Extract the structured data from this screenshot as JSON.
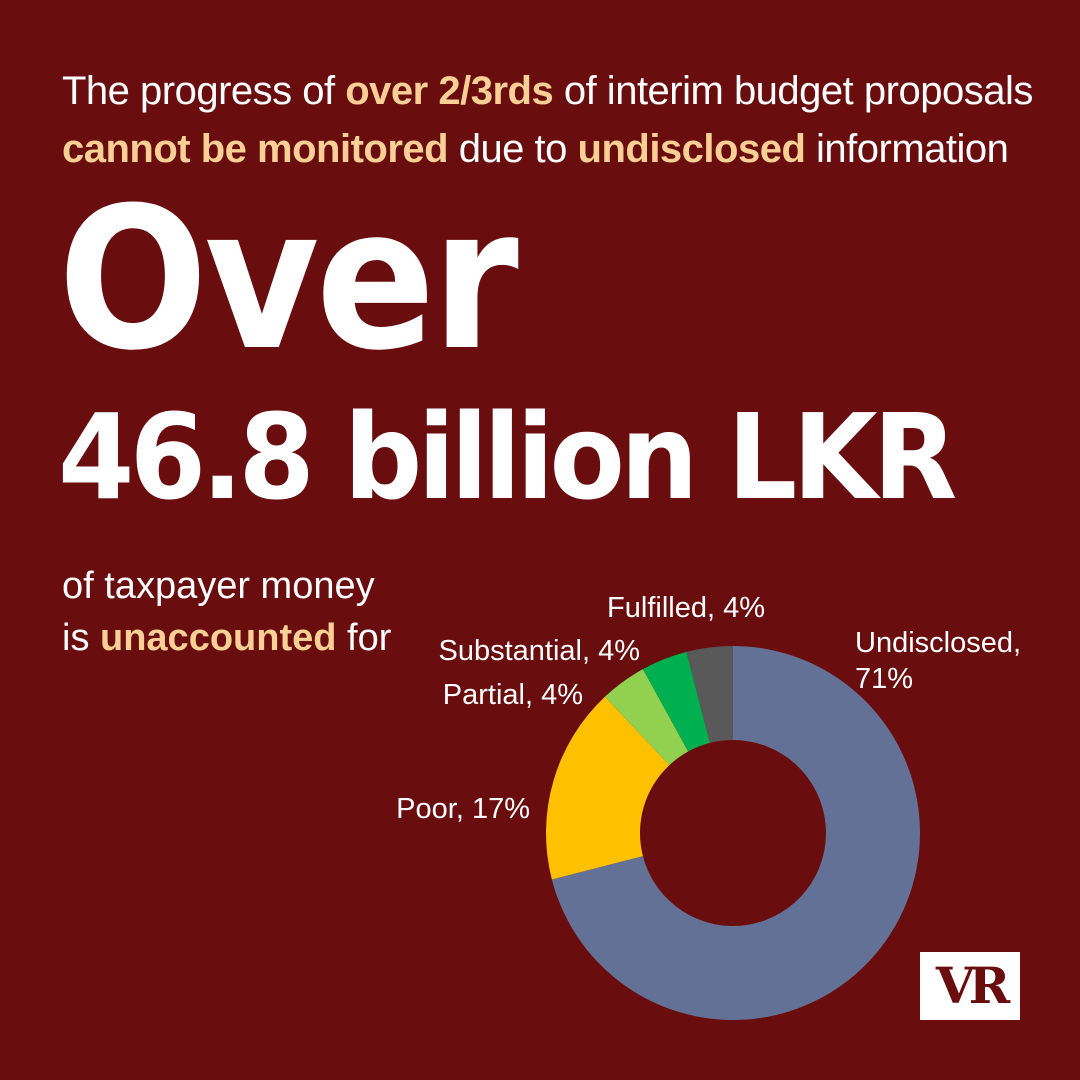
{
  "headline": {
    "line1_a": "The progress of ",
    "line1_b": "over 2/3rds",
    "line1_c": " of interim budget proposals",
    "line2_a": "cannot be monitored",
    "line2_b": " due to ",
    "line2_c": "undisclosed",
    "line2_d": " information"
  },
  "big_over": "Over",
  "big_amount": "46.8 billion LKR",
  "subtext": {
    "line1": "of taxpayer money",
    "line2_a": "is ",
    "line2_b": "unaccounted",
    "line2_c": " for"
  },
  "logo_text": "VR",
  "colors": {
    "background": "#6a0d0f",
    "highlight": "#f9cf95"
  },
  "chart_data": {
    "type": "pie",
    "donut": true,
    "title": "",
    "slices": [
      {
        "name": "Undisclosed",
        "value": 71,
        "label_lines": [
          "Undisclosed,",
          "71%"
        ],
        "color": "#647196"
      },
      {
        "name": "Poor",
        "value": 17,
        "label_lines": [
          "Poor, 17%"
        ],
        "color": "#ffc000"
      },
      {
        "name": "Partial",
        "value": 4,
        "label_lines": [
          "Partial, 4%"
        ],
        "color": "#92d050"
      },
      {
        "name": "Substantial",
        "value": 4,
        "label_lines": [
          "Substantial, 4%"
        ],
        "color": "#00b050"
      },
      {
        "name": "Fulfilled",
        "value": 4,
        "label_lines": [
          "Fulfilled, 4%"
        ],
        "color": "#595959"
      }
    ]
  }
}
